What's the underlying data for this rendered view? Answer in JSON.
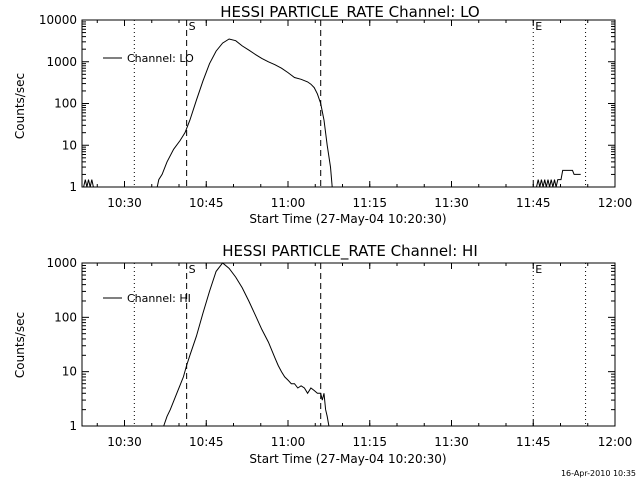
{
  "footer": {
    "timestamp": "16-Apr-2010 10:35"
  },
  "chart_data": [
    {
      "type": "line",
      "title": "HESSI PARTICLE_RATE Channel: LO",
      "xlabel": "Start Time (27-May-04 10:20:30)",
      "ylabel": "Counts/sec",
      "xlim": [
        10.37,
        12.0
      ],
      "ylim": [
        1,
        10000
      ],
      "yscale": "log",
      "x_unit": "hours",
      "xtick_labels": [
        "10:30",
        "10:45",
        "11:00",
        "11:15",
        "11:30",
        "11:45",
        "12:00"
      ],
      "xtick_values": [
        10.5,
        10.75,
        11.0,
        11.25,
        11.5,
        11.75,
        12.0
      ],
      "ytick_labels": [
        "1",
        "10",
        "100",
        "1000",
        "10000"
      ],
      "ytick_values": [
        1,
        10,
        100,
        1000,
        10000
      ],
      "grid": false,
      "legend": {
        "position": "top-left",
        "entries": [
          "Channel: LO"
        ]
      },
      "markers": [
        {
          "label": "S",
          "x": 10.69,
          "style": "dashed"
        },
        {
          "label": "",
          "x": 11.1,
          "style": "dashed"
        },
        {
          "label": "E",
          "x": 11.75,
          "style": "dotted"
        },
        {
          "label": "",
          "x": 10.53,
          "style": "dotted"
        },
        {
          "label": "",
          "x": 11.91,
          "style": "dotted"
        }
      ],
      "series": [
        {
          "name": "Channel: LO",
          "segments": [
            [
              [
                10.375,
                1
              ],
              [
                10.38,
                1.5
              ],
              [
                10.385,
                1
              ],
              [
                10.39,
                1.5
              ],
              [
                10.395,
                1
              ],
              [
                10.4,
                1.5
              ],
              [
                10.405,
                1
              ]
            ],
            [
              [
                10.6,
                1
              ],
              [
                10.605,
                1.5
              ],
              [
                10.615,
                2
              ],
              [
                10.63,
                4
              ],
              [
                10.65,
                8
              ],
              [
                10.67,
                13
              ],
              [
                10.685,
                20
              ],
              [
                10.7,
                40
              ],
              [
                10.72,
                120
              ],
              [
                10.74,
                350
              ],
              [
                10.76,
                900
              ],
              [
                10.78,
                1800
              ],
              [
                10.8,
                2800
              ],
              [
                10.82,
                3500
              ],
              [
                10.84,
                3200
              ],
              [
                10.86,
                2400
              ],
              [
                10.88,
                1900
              ],
              [
                10.9,
                1500
              ],
              [
                10.92,
                1200
              ],
              [
                10.94,
                1000
              ],
              [
                10.96,
                850
              ],
              [
                10.98,
                700
              ],
              [
                11.0,
                550
              ],
              [
                11.01,
                480
              ],
              [
                11.02,
                420
              ],
              [
                11.04,
                380
              ],
              [
                11.06,
                330
              ],
              [
                11.07,
                290
              ],
              [
                11.08,
                240
              ],
              [
                11.09,
                170
              ],
              [
                11.1,
                100
              ],
              [
                11.11,
                40
              ],
              [
                11.12,
                10
              ],
              [
                11.13,
                3
              ],
              [
                11.135,
                1
              ]
            ],
            [
              [
                11.76,
                1
              ],
              [
                11.765,
                1.5
              ],
              [
                11.77,
                1
              ],
              [
                11.775,
                1.5
              ],
              [
                11.78,
                1
              ],
              [
                11.785,
                1.5
              ],
              [
                11.79,
                1
              ],
              [
                11.795,
                1.5
              ],
              [
                11.8,
                1
              ],
              [
                11.805,
                1.5
              ],
              [
                11.81,
                1
              ],
              [
                11.815,
                1.5
              ],
              [
                11.82,
                1
              ],
              [
                11.825,
                1.5
              ],
              [
                11.835,
                1.5
              ],
              [
                11.84,
                2.5
              ],
              [
                11.87,
                2.5
              ],
              [
                11.875,
                2
              ],
              [
                11.895,
                2
              ]
            ]
          ]
        }
      ]
    },
    {
      "type": "line",
      "title": "HESSI PARTICLE_RATE Channel: HI",
      "xlabel": "Start Time (27-May-04 10:20:30)",
      "ylabel": "Counts/sec",
      "xlim": [
        10.37,
        12.0
      ],
      "ylim": [
        1,
        1000
      ],
      "yscale": "log",
      "x_unit": "hours",
      "xtick_labels": [
        "10:30",
        "10:45",
        "11:00",
        "11:15",
        "11:30",
        "11:45",
        "12:00"
      ],
      "xtick_values": [
        10.5,
        10.75,
        11.0,
        11.25,
        11.5,
        11.75,
        12.0
      ],
      "ytick_labels": [
        "1",
        "10",
        "100",
        "1000"
      ],
      "ytick_values": [
        1,
        10,
        100,
        1000
      ],
      "grid": false,
      "legend": {
        "position": "top-left",
        "entries": [
          "Channel: HI"
        ]
      },
      "markers": [
        {
          "label": "S",
          "x": 10.69,
          "style": "dashed"
        },
        {
          "label": "",
          "x": 11.1,
          "style": "dashed"
        },
        {
          "label": "E",
          "x": 11.75,
          "style": "dotted"
        },
        {
          "label": "",
          "x": 10.53,
          "style": "dotted"
        },
        {
          "label": "",
          "x": 11.91,
          "style": "dotted"
        }
      ],
      "series": [
        {
          "name": "Channel: HI",
          "segments": [
            [
              [
                10.62,
                1
              ],
              [
                10.63,
                1.5
              ],
              [
                10.64,
                2
              ],
              [
                10.66,
                4
              ],
              [
                10.68,
                8
              ],
              [
                10.69,
                13
              ],
              [
                10.7,
                20
              ],
              [
                10.72,
                45
              ],
              [
                10.74,
                120
              ],
              [
                10.76,
                300
              ],
              [
                10.78,
                700
              ],
              [
                10.8,
                1000
              ],
              [
                10.82,
                800
              ],
              [
                10.84,
                550
              ],
              [
                10.86,
                350
              ],
              [
                10.88,
                200
              ],
              [
                10.9,
                110
              ],
              [
                10.92,
                60
              ],
              [
                10.94,
                35
              ],
              [
                10.96,
                18
              ],
              [
                10.97,
                13
              ],
              [
                10.98,
                10
              ],
              [
                10.99,
                8
              ],
              [
                11.0,
                7
              ],
              [
                11.01,
                6
              ],
              [
                11.02,
                6
              ],
              [
                11.03,
                5
              ],
              [
                11.04,
                5.5
              ],
              [
                11.05,
                5
              ],
              [
                11.06,
                4
              ],
              [
                11.07,
                5
              ],
              [
                11.08,
                4.5
              ],
              [
                11.09,
                4
              ],
              [
                11.1,
                4
              ],
              [
                11.105,
                3
              ],
              [
                11.11,
                4
              ],
              [
                11.115,
                2
              ],
              [
                11.12,
                1.5
              ],
              [
                11.125,
                1
              ]
            ]
          ]
        }
      ]
    }
  ]
}
